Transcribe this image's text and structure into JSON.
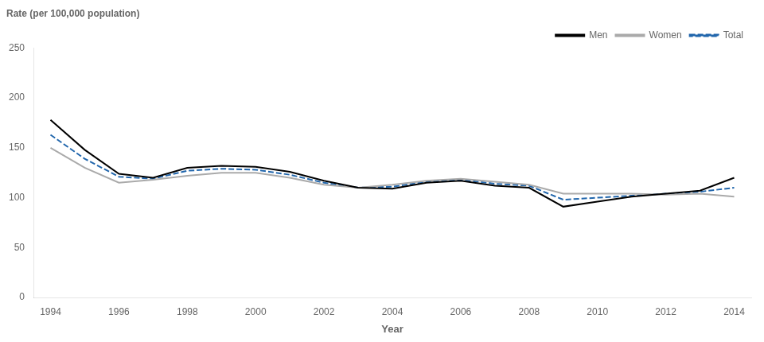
{
  "chart_data": {
    "type": "line",
    "ylabel": "Rate (per 100,000 population)",
    "xlabel": "Year",
    "x": [
      1994,
      1995,
      1996,
      1997,
      1998,
      1999,
      2000,
      2001,
      2002,
      2003,
      2004,
      2005,
      2006,
      2007,
      2008,
      2009,
      2010,
      2011,
      2012,
      2013,
      2014
    ],
    "series": [
      {
        "name": "Men",
        "color": "#000000",
        "values": [
          178,
          148,
          124,
          120,
          130,
          132,
          131,
          126,
          117,
          110,
          109,
          115,
          117,
          112,
          110,
          91,
          96,
          101,
          104,
          107,
          120
        ]
      },
      {
        "name": "Women",
        "color": "#aaaaaa",
        "values": [
          150,
          130,
          115,
          118,
          122,
          125,
          125,
          120,
          113,
          110,
          113,
          117,
          119,
          116,
          113,
          104,
          104,
          104,
          103,
          104,
          101
        ]
      },
      {
        "name": "Total",
        "color": "#2166ac",
        "line_style": "dashed",
        "values": [
          163,
          139,
          121,
          119,
          127,
          129,
          128,
          123,
          115,
          110,
          111,
          116,
          118,
          114,
          112,
          98,
          100,
          102,
          104,
          106,
          110
        ]
      }
    ],
    "xlim": [
      1993.5,
      2014.5
    ],
    "xticks": [
      1994,
      1996,
      1998,
      2000,
      2002,
      2004,
      2006,
      2008,
      2010,
      2012,
      2014
    ],
    "ylim": [
      0,
      250
    ],
    "yticks": [
      0,
      50,
      100,
      150,
      200,
      250
    ],
    "grid": false,
    "legend": "upper right"
  }
}
